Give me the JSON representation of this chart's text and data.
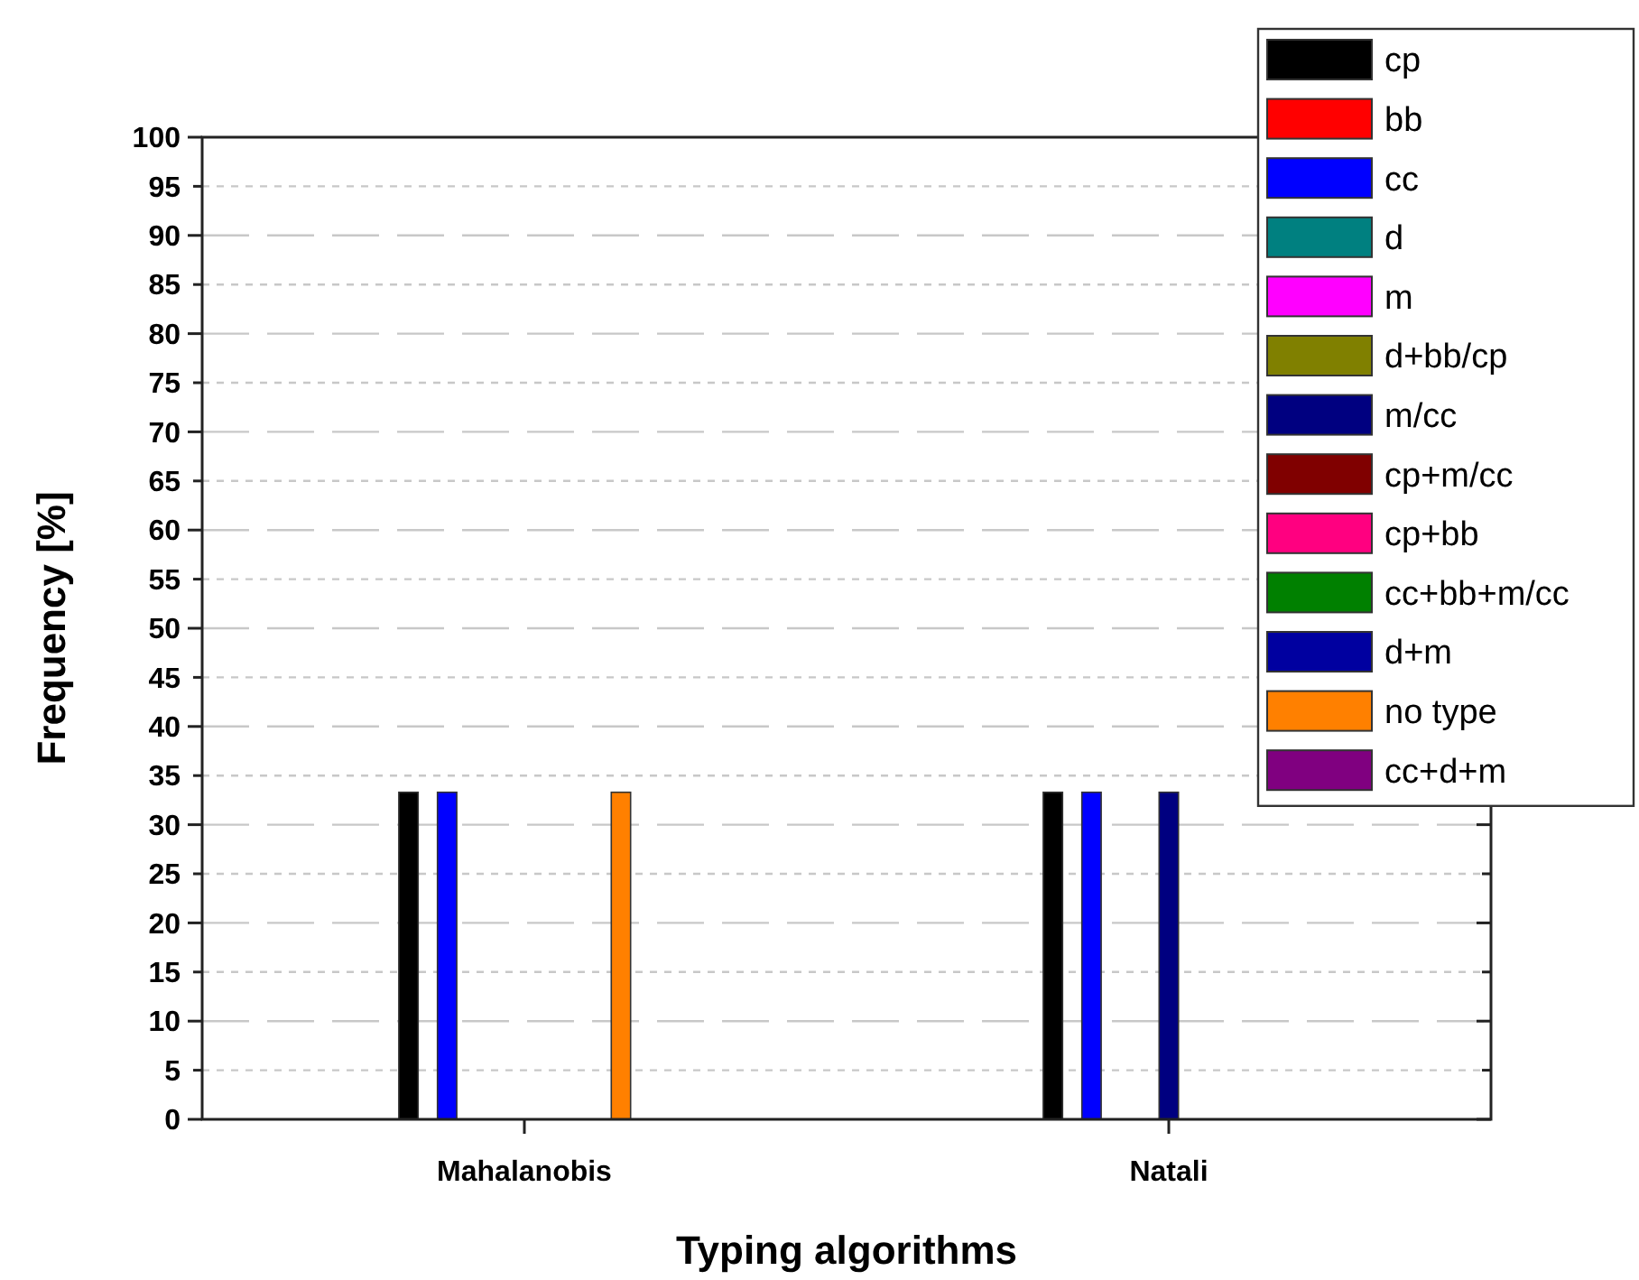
{
  "chart_data": {
    "type": "bar",
    "xlabel": "Typing algorithms",
    "ylabel": "Frequency [%]",
    "categories": [
      "Mahalanobis",
      "Natali"
    ],
    "ylim": [
      0,
      100
    ],
    "yticks": [
      0,
      5,
      10,
      15,
      20,
      25,
      30,
      35,
      40,
      45,
      50,
      55,
      60,
      65,
      70,
      75,
      80,
      85,
      90,
      95,
      100
    ],
    "grid": "y",
    "legend": "top right",
    "series": [
      {
        "name": "cp",
        "color": "#000000",
        "values": [
          33.3,
          33.3
        ]
      },
      {
        "name": "bb",
        "color": "#ff0000",
        "values": [
          0,
          0
        ]
      },
      {
        "name": "cc",
        "color": "#0000ff",
        "values": [
          33.3,
          33.3
        ]
      },
      {
        "name": "d",
        "color": "#008080",
        "values": [
          0,
          0
        ]
      },
      {
        "name": "m",
        "color": "#ff00ff",
        "values": [
          0,
          0
        ]
      },
      {
        "name": "d+bb/cp",
        "color": "#808000",
        "values": [
          0,
          0
        ]
      },
      {
        "name": "m/cc",
        "color": "#000080",
        "values": [
          0,
          33.3
        ]
      },
      {
        "name": "cp+m/cc",
        "color": "#800000",
        "values": [
          0,
          0
        ]
      },
      {
        "name": "cp+bb",
        "color": "#ff0080",
        "values": [
          0,
          0
        ]
      },
      {
        "name": "cc+bb+m/cc",
        "color": "#008000",
        "values": [
          0,
          0
        ]
      },
      {
        "name": "d+m",
        "color": "#0000a0",
        "values": [
          0,
          0
        ]
      },
      {
        "name": "no type",
        "color": "#ff8000",
        "values": [
          33.3,
          0
        ]
      },
      {
        "name": "cc+d+m",
        "color": "#800080",
        "values": [
          0,
          0
        ]
      }
    ]
  }
}
